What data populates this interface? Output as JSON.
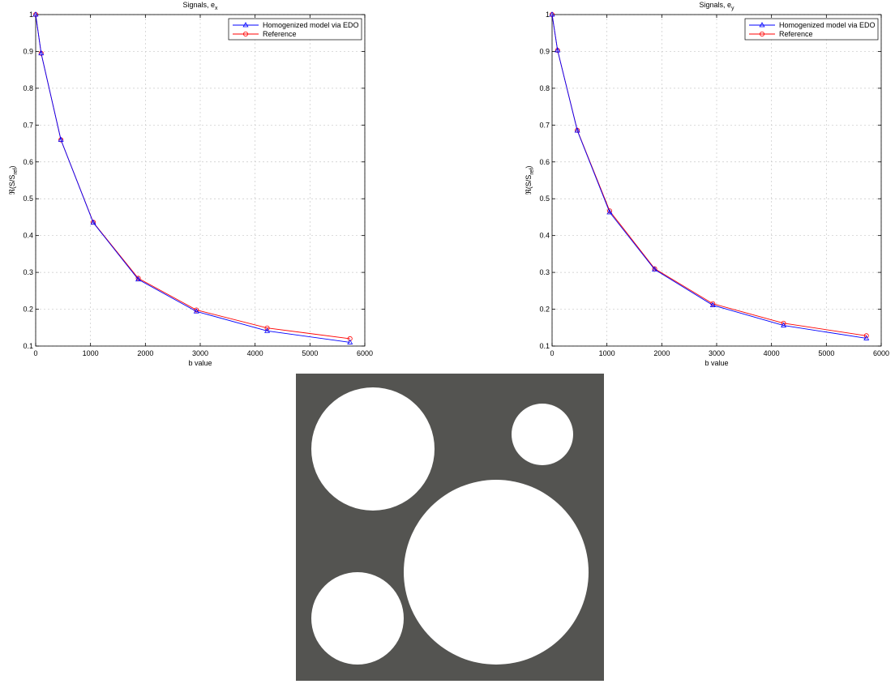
{
  "chart_data": [
    {
      "type": "line",
      "title": "Signals, e",
      "title_sub": "x",
      "xlabel": "b value",
      "ylabel": "ℜ(S/S",
      "ylabel_sub": "ref",
      "ylabel_close": ")",
      "xlim": [
        0,
        6000
      ],
      "ylim": [
        0.1,
        1
      ],
      "xticks": [
        "0",
        "1000",
        "2000",
        "3000",
        "4000",
        "5000",
        "6000"
      ],
      "yticks": [
        "0.1",
        "0.2",
        "0.3",
        "0.4",
        "0.5",
        "0.6",
        "0.7",
        "0.8",
        "0.9",
        "1"
      ],
      "grid": true,
      "legend_position": "top-right",
      "x": [
        0,
        100,
        460,
        1050,
        1870,
        2930,
        4220,
        5730
      ],
      "series": [
        {
          "name": "Homogenized model via EDO",
          "color": "#0000ff",
          "marker": "triangle",
          "values": [
            1.0,
            0.895,
            0.66,
            0.435,
            0.281,
            0.194,
            0.141,
            0.11
          ]
        },
        {
          "name": "Reference",
          "color": "#ff0000",
          "marker": "circle",
          "values": [
            1.0,
            0.895,
            0.66,
            0.436,
            0.284,
            0.198,
            0.149,
            0.12
          ]
        }
      ]
    },
    {
      "type": "line",
      "title": "Signals, e",
      "title_sub": "y",
      "xlabel": "b value",
      "ylabel": "ℜ(S/S",
      "ylabel_sub": "ref",
      "ylabel_close": ")",
      "xlim": [
        0,
        6000
      ],
      "ylim": [
        0.1,
        1
      ],
      "xticks": [
        "0",
        "1000",
        "2000",
        "3000",
        "4000",
        "5000",
        "6000"
      ],
      "yticks": [
        "0.1",
        "0.2",
        "0.3",
        "0.4",
        "0.5",
        "0.6",
        "0.7",
        "0.8",
        "0.9",
        "1"
      ],
      "grid": true,
      "legend_position": "top-right",
      "x": [
        0,
        100,
        460,
        1050,
        1870,
        2930,
        4220,
        5730
      ],
      "series": [
        {
          "name": "Homogenized model via EDO",
          "color": "#0000ff",
          "marker": "triangle",
          "values": [
            1.0,
            0.903,
            0.685,
            0.463,
            0.308,
            0.211,
            0.156,
            0.121
          ]
        },
        {
          "name": "Reference",
          "color": "#ff0000",
          "marker": "circle",
          "values": [
            1.0,
            0.903,
            0.686,
            0.467,
            0.31,
            0.215,
            0.162,
            0.128
          ]
        }
      ]
    }
  ],
  "geometry": {
    "background_color": "#545451",
    "inclusion_color": "#ffffff"
  }
}
